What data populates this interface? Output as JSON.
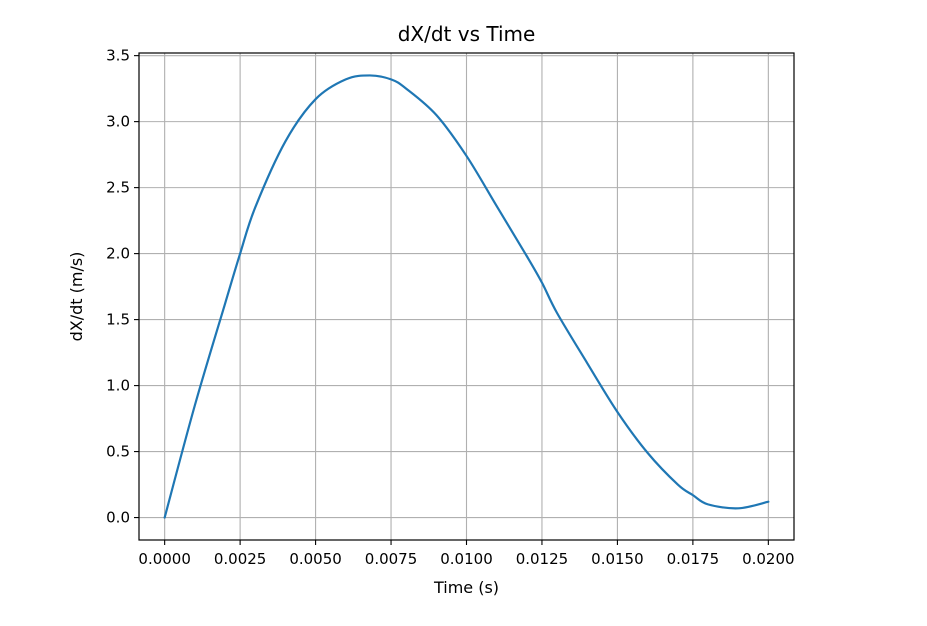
{
  "chart_data": {
    "type": "line",
    "title": "dX/dt vs Time",
    "xlabel": "Time (s)",
    "ylabel": "dX/dt (m/s)",
    "xlim": [
      -0.00085,
      0.02085
    ],
    "ylim": [
      -0.17,
      3.52
    ],
    "grid": true,
    "legend": "none",
    "x_ticks": [
      0.0,
      0.0025,
      0.005,
      0.0075,
      0.01,
      0.0125,
      0.015,
      0.0175,
      0.02
    ],
    "x_tick_labels": [
      "0.0000",
      "0.0025",
      "0.0050",
      "0.0075",
      "0.0100",
      "0.0125",
      "0.0150",
      "0.0175",
      "0.0200"
    ],
    "y_ticks": [
      0.0,
      0.5,
      1.0,
      1.5,
      2.0,
      2.5,
      3.0,
      3.5
    ],
    "y_tick_labels": [
      "0.0",
      "0.5",
      "1.0",
      "1.5",
      "2.0",
      "2.5",
      "3.0",
      "3.5"
    ],
    "series": [
      {
        "color": "#1f77b4",
        "x": [
          0.0,
          0.001,
          0.002,
          0.0025,
          0.003,
          0.004,
          0.005,
          0.006,
          0.0068,
          0.0075,
          0.008,
          0.009,
          0.01,
          0.011,
          0.012,
          0.0125,
          0.013,
          0.014,
          0.015,
          0.016,
          0.017,
          0.0175,
          0.018,
          0.019,
          0.02
        ],
        "y": [
          0.0,
          0.85,
          1.62,
          2.0,
          2.35,
          2.85,
          3.17,
          3.32,
          3.35,
          3.32,
          3.25,
          3.05,
          2.74,
          2.36,
          1.98,
          1.78,
          1.55,
          1.17,
          0.8,
          0.49,
          0.25,
          0.17,
          0.1,
          0.07,
          0.12
        ]
      }
    ]
  }
}
